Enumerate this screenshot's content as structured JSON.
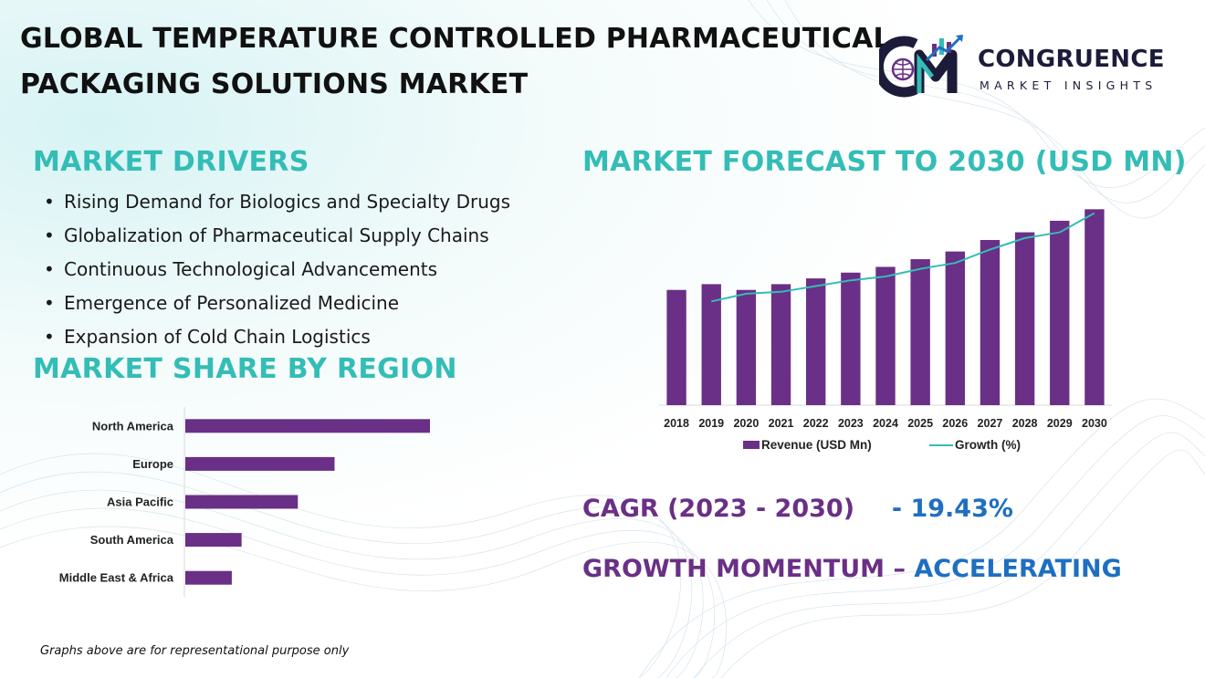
{
  "title": {
    "line1": "GLOBAL TEMPERATURE CONTROLLED PHARMACEUTICAL",
    "line2": "PACKAGING SOLUTIONS MARKET"
  },
  "logo": {
    "name": "CONGRUENCE",
    "subtitle": "MARKET INSIGHTS"
  },
  "drivers": {
    "heading": "MARKET DRIVERS",
    "items": [
      "Rising Demand for Biologics and Specialty Drugs",
      "Globalization of Pharmaceutical Supply Chains",
      "Continuous Technological Advancements",
      "Emergence of Personalized Medicine",
      "Expansion of Cold Chain Logistics"
    ]
  },
  "region": {
    "heading": "MARKET SHARE BY REGION"
  },
  "forecast": {
    "heading": "MARKET FORECAST TO 2030 (USD MN)"
  },
  "cagr": {
    "label": "CAGR (2023 - 2030)",
    "value": "- 19.43%"
  },
  "momentum": {
    "label": "GROWTH MOMENTUM –",
    "value": "ACCELERATING"
  },
  "footnote": "Graphs above are for representational purpose only",
  "colors": {
    "bar": "#6a2f86",
    "line": "#33bdb6",
    "heading": "#33bdb6",
    "accent_purple": "#6a2f86",
    "accent_blue": "#1e6fc1"
  },
  "chart_data": [
    {
      "type": "bar",
      "orientation": "horizontal",
      "categories": [
        "North America",
        "Europe",
        "Asia Pacific",
        "South America",
        "Middle East & Africa"
      ],
      "values": [
        100,
        61,
        46,
        23,
        19
      ],
      "title": "",
      "xlabel": "",
      "ylabel": "",
      "axis_labels_shown": false,
      "grid": false
    },
    {
      "type": "bar",
      "categories": [
        "2018",
        "2019",
        "2020",
        "2021",
        "2022",
        "2023",
        "2024",
        "2025",
        "2026",
        "2027",
        "2028",
        "2029",
        "2030"
      ],
      "series": [
        {
          "name": "Revenue (USD Mn)",
          "type": "bar",
          "values": [
            60,
            63,
            60,
            63,
            66,
            69,
            72,
            76,
            80,
            86,
            90,
            96,
            102
          ]
        },
        {
          "name": "Growth (%)",
          "type": "line",
          "values": [
            null,
            54,
            58,
            59,
            62,
            65,
            67,
            71,
            74,
            81,
            87,
            90,
            100
          ]
        }
      ],
      "ylim": [
        0,
        105
      ],
      "title": "",
      "xlabel": "",
      "ylabel": "",
      "legend": "bottom",
      "grid": false
    }
  ]
}
